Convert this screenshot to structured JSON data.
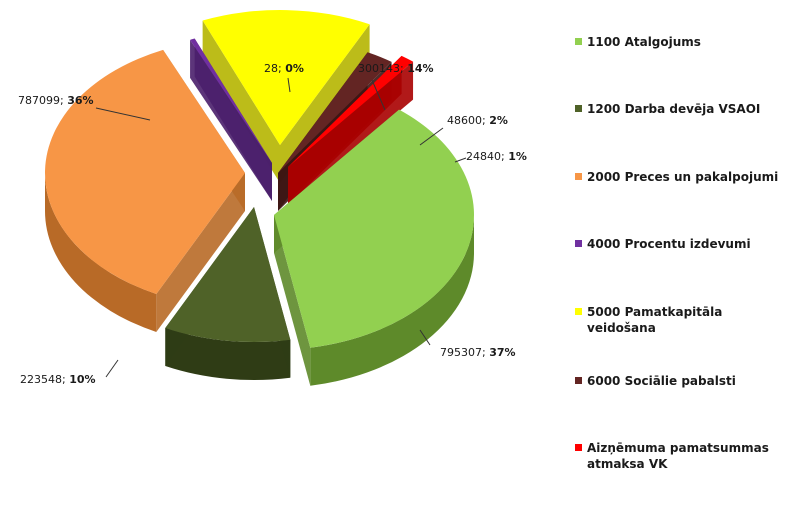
{
  "chart_data": {
    "type": "pie",
    "slices": [
      {
        "code": "1100",
        "label": "1100 Atalgojums",
        "value": 795307,
        "percent": "37%",
        "color": "#92d050",
        "side": "#5e8a2a",
        "text_left": "795307; ",
        "text_pct": "37%"
      },
      {
        "code": "1200",
        "label": "1200 Darba devēja VSAOI",
        "value": 223548,
        "percent": "10%",
        "color": "#4f6228",
        "side": "#2f3c15",
        "text_left": "223548; ",
        "text_pct": "10%"
      },
      {
        "code": "2000",
        "label": "2000 Preces un pakalpojumi",
        "value": 787099,
        "percent": "36%",
        "color": "#f79646",
        "side": "#b86a27",
        "text_left": "787099; ",
        "text_pct": "36%"
      },
      {
        "code": "4000",
        "label": "4000 Procentu izdevumi",
        "value": 28,
        "percent": "0%",
        "color": "#7030a0",
        "side": "#4a1f6b",
        "text_left": "28; ",
        "text_pct": "0%"
      },
      {
        "code": "5000",
        "label": "5000 Pamatkapitāla veidošana",
        "value": 300143,
        "percent": "14%",
        "color": "#ffff00",
        "side": "#b5b500",
        "text_left": "300143; ",
        "text_pct": "14%"
      },
      {
        "code": "6000",
        "label": "6000 Sociālie pabalsti",
        "value": 48600,
        "percent": "2%",
        "color": "#632523",
        "side": "#3c1513",
        "text_left": "48600; ",
        "text_pct": "2%"
      },
      {
        "code": "VK",
        "label": "Aizņēmuma pamatsummas atmaksa VK",
        "value": 24840,
        "percent": "1%",
        "color": "#ff0000",
        "side": "#a80000",
        "text_left": "24840; ",
        "text_pct": "1%"
      }
    ],
    "legend_position": "right"
  }
}
